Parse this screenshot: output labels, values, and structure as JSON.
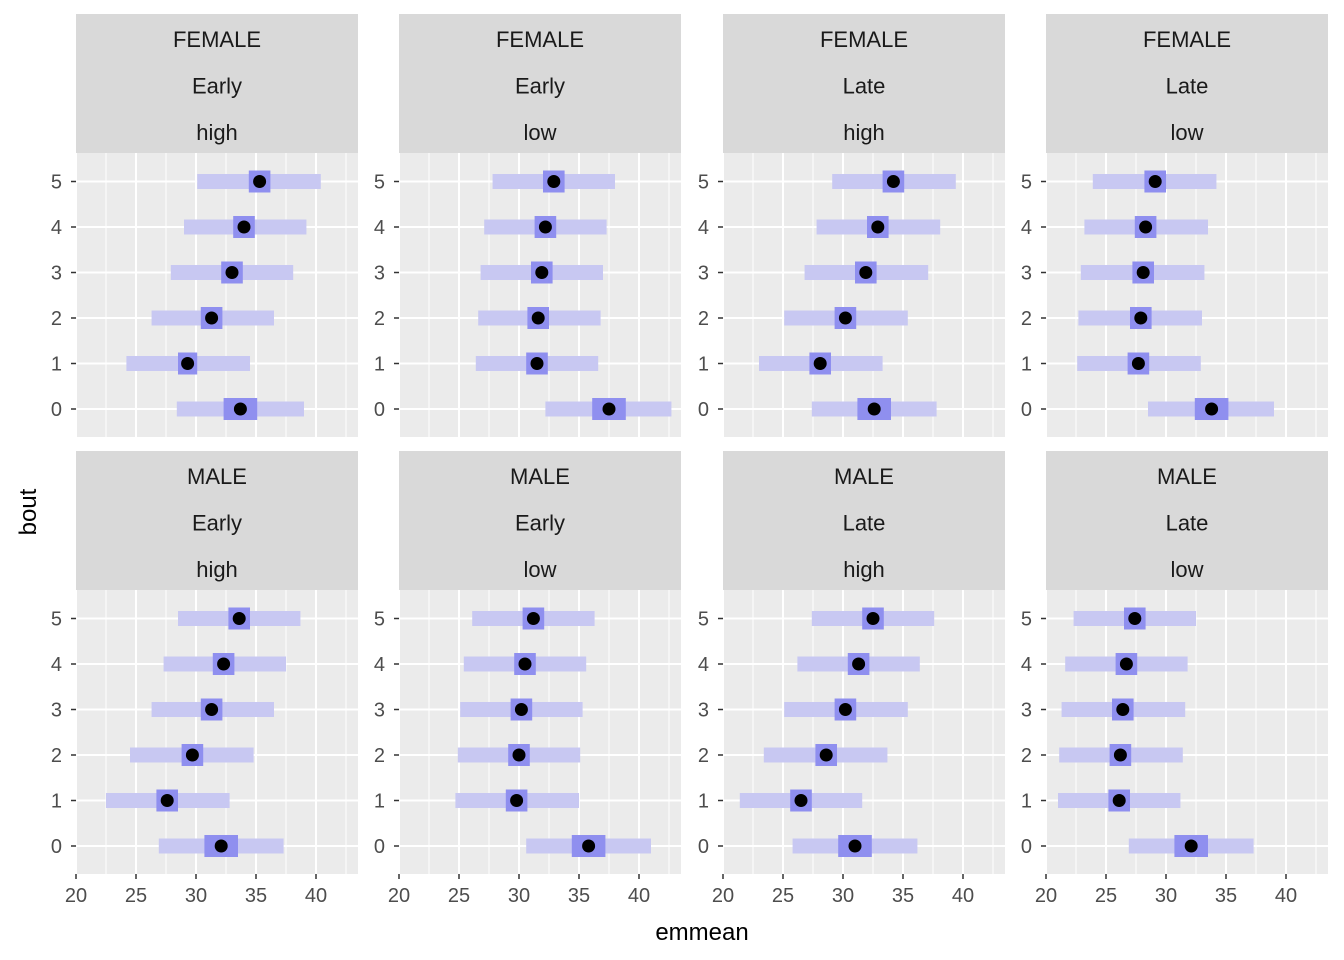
{
  "chart_data": {
    "type": "dot-interval",
    "xlabel": "emmean",
    "ylabel": "bout",
    "xlim": [
      20,
      43.5
    ],
    "x_ticks": [
      20,
      25,
      30,
      35,
      40
    ],
    "y_categories": [
      "0",
      "1",
      "2",
      "3",
      "4",
      "5"
    ],
    "colors": {
      "panel_bg": "#ebebeb",
      "strip_bg": "#d9d9d9",
      "grid_major": "#ffffff",
      "interval_wide": "#c8c8f2",
      "interval_narrow": "#8f8fef",
      "point": "#000000"
    },
    "panels": [
      {
        "strip": [
          "FEMALE",
          "Early",
          "high"
        ],
        "rows": [
          {
            "bout": 0,
            "emmean": 33.7,
            "lcl": 28.4,
            "ucl": 39.0,
            "lo50": 32.3,
            "hi50": 35.1
          },
          {
            "bout": 1,
            "emmean": 29.3,
            "lcl": 24.2,
            "ucl": 34.5,
            "lo50": 28.5,
            "hi50": 30.1
          },
          {
            "bout": 2,
            "emmean": 31.3,
            "lcl": 26.3,
            "ucl": 36.5,
            "lo50": 30.4,
            "hi50": 32.2
          },
          {
            "bout": 3,
            "emmean": 33.0,
            "lcl": 27.9,
            "ucl": 38.1,
            "lo50": 32.1,
            "hi50": 33.9
          },
          {
            "bout": 4,
            "emmean": 34.0,
            "lcl": 29.0,
            "ucl": 39.2,
            "lo50": 33.1,
            "hi50": 34.9
          },
          {
            "bout": 5,
            "emmean": 35.3,
            "lcl": 30.1,
            "ucl": 40.4,
            "lo50": 34.4,
            "hi50": 36.2
          }
        ]
      },
      {
        "strip": [
          "FEMALE",
          "Early",
          "low"
        ],
        "rows": [
          {
            "bout": 0,
            "emmean": 37.5,
            "lcl": 32.2,
            "ucl": 42.7,
            "lo50": 36.1,
            "hi50": 38.9
          },
          {
            "bout": 1,
            "emmean": 31.5,
            "lcl": 26.4,
            "ucl": 36.6,
            "lo50": 30.6,
            "hi50": 32.4
          },
          {
            "bout": 2,
            "emmean": 31.6,
            "lcl": 26.6,
            "ucl": 36.8,
            "lo50": 30.7,
            "hi50": 32.5
          },
          {
            "bout": 3,
            "emmean": 31.9,
            "lcl": 26.8,
            "ucl": 37.0,
            "lo50": 31.0,
            "hi50": 32.8
          },
          {
            "bout": 4,
            "emmean": 32.2,
            "lcl": 27.1,
            "ucl": 37.3,
            "lo50": 31.3,
            "hi50": 33.1
          },
          {
            "bout": 5,
            "emmean": 32.9,
            "lcl": 27.8,
            "ucl": 38.0,
            "lo50": 32.0,
            "hi50": 33.8
          }
        ]
      },
      {
        "strip": [
          "FEMALE",
          "Late",
          "high"
        ],
        "rows": [
          {
            "bout": 0,
            "emmean": 32.6,
            "lcl": 27.4,
            "ucl": 37.8,
            "lo50": 31.2,
            "hi50": 34.0
          },
          {
            "bout": 1,
            "emmean": 28.1,
            "lcl": 23.0,
            "ucl": 33.3,
            "lo50": 27.2,
            "hi50": 29.0
          },
          {
            "bout": 2,
            "emmean": 30.2,
            "lcl": 25.1,
            "ucl": 35.4,
            "lo50": 29.3,
            "hi50": 31.1
          },
          {
            "bout": 3,
            "emmean": 31.9,
            "lcl": 26.8,
            "ucl": 37.1,
            "lo50": 31.0,
            "hi50": 32.8
          },
          {
            "bout": 4,
            "emmean": 32.9,
            "lcl": 27.8,
            "ucl": 38.1,
            "lo50": 32.0,
            "hi50": 33.8
          },
          {
            "bout": 5,
            "emmean": 34.2,
            "lcl": 29.1,
            "ucl": 39.4,
            "lo50": 33.3,
            "hi50": 35.1
          }
        ]
      },
      {
        "strip": [
          "FEMALE",
          "Late",
          "low"
        ],
        "rows": [
          {
            "bout": 0,
            "emmean": 33.8,
            "lcl": 28.5,
            "ucl": 39.0,
            "lo50": 32.4,
            "hi50": 35.2
          },
          {
            "bout": 1,
            "emmean": 27.7,
            "lcl": 22.6,
            "ucl": 32.9,
            "lo50": 26.8,
            "hi50": 28.6
          },
          {
            "bout": 2,
            "emmean": 27.9,
            "lcl": 22.7,
            "ucl": 33.0,
            "lo50": 27.0,
            "hi50": 28.8
          },
          {
            "bout": 3,
            "emmean": 28.1,
            "lcl": 22.9,
            "ucl": 33.2,
            "lo50": 27.2,
            "hi50": 29.0
          },
          {
            "bout": 4,
            "emmean": 28.3,
            "lcl": 23.2,
            "ucl": 33.5,
            "lo50": 27.4,
            "hi50": 29.2
          },
          {
            "bout": 5,
            "emmean": 29.1,
            "lcl": 23.9,
            "ucl": 34.2,
            "lo50": 28.2,
            "hi50": 30.0
          }
        ]
      },
      {
        "strip": [
          "MALE",
          "Early",
          "high"
        ],
        "rows": [
          {
            "bout": 0,
            "emmean": 32.1,
            "lcl": 26.9,
            "ucl": 37.3,
            "lo50": 30.7,
            "hi50": 33.5
          },
          {
            "bout": 1,
            "emmean": 27.6,
            "lcl": 22.5,
            "ucl": 32.8,
            "lo50": 26.7,
            "hi50": 28.5
          },
          {
            "bout": 2,
            "emmean": 29.7,
            "lcl": 24.5,
            "ucl": 34.8,
            "lo50": 28.8,
            "hi50": 30.6
          },
          {
            "bout": 3,
            "emmean": 31.3,
            "lcl": 26.3,
            "ucl": 36.5,
            "lo50": 30.4,
            "hi50": 32.2
          },
          {
            "bout": 4,
            "emmean": 32.3,
            "lcl": 27.3,
            "ucl": 37.5,
            "lo50": 31.4,
            "hi50": 33.2
          },
          {
            "bout": 5,
            "emmean": 33.6,
            "lcl": 28.5,
            "ucl": 38.7,
            "lo50": 32.7,
            "hi50": 34.5
          }
        ]
      },
      {
        "strip": [
          "MALE",
          "Early",
          "low"
        ],
        "rows": [
          {
            "bout": 0,
            "emmean": 35.8,
            "lcl": 30.6,
            "ucl": 41.0,
            "lo50": 34.4,
            "hi50": 37.2
          },
          {
            "bout": 1,
            "emmean": 29.8,
            "lcl": 24.7,
            "ucl": 35.0,
            "lo50": 28.9,
            "hi50": 30.7
          },
          {
            "bout": 2,
            "emmean": 30.0,
            "lcl": 24.9,
            "ucl": 35.1,
            "lo50": 29.1,
            "hi50": 30.9
          },
          {
            "bout": 3,
            "emmean": 30.2,
            "lcl": 25.1,
            "ucl": 35.3,
            "lo50": 29.3,
            "hi50": 31.1
          },
          {
            "bout": 4,
            "emmean": 30.5,
            "lcl": 25.4,
            "ucl": 35.6,
            "lo50": 29.6,
            "hi50": 31.4
          },
          {
            "bout": 5,
            "emmean": 31.2,
            "lcl": 26.1,
            "ucl": 36.3,
            "lo50": 30.3,
            "hi50": 32.1
          }
        ]
      },
      {
        "strip": [
          "MALE",
          "Late",
          "high"
        ],
        "rows": [
          {
            "bout": 0,
            "emmean": 31.0,
            "lcl": 25.8,
            "ucl": 36.2,
            "lo50": 29.6,
            "hi50": 32.4
          },
          {
            "bout": 1,
            "emmean": 26.5,
            "lcl": 21.4,
            "ucl": 31.6,
            "lo50": 25.6,
            "hi50": 27.4
          },
          {
            "bout": 2,
            "emmean": 28.6,
            "lcl": 23.4,
            "ucl": 33.7,
            "lo50": 27.7,
            "hi50": 29.5
          },
          {
            "bout": 3,
            "emmean": 30.2,
            "lcl": 25.1,
            "ucl": 35.4,
            "lo50": 29.3,
            "hi50": 31.1
          },
          {
            "bout": 4,
            "emmean": 31.3,
            "lcl": 26.2,
            "ucl": 36.4,
            "lo50": 30.4,
            "hi50": 32.2
          },
          {
            "bout": 5,
            "emmean": 32.5,
            "lcl": 27.4,
            "ucl": 37.6,
            "lo50": 31.6,
            "hi50": 33.4
          }
        ]
      },
      {
        "strip": [
          "MALE",
          "Late",
          "low"
        ],
        "rows": [
          {
            "bout": 0,
            "emmean": 32.1,
            "lcl": 26.9,
            "ucl": 37.3,
            "lo50": 30.7,
            "hi50": 33.5
          },
          {
            "bout": 1,
            "emmean": 26.1,
            "lcl": 21.0,
            "ucl": 31.2,
            "lo50": 25.2,
            "hi50": 27.0
          },
          {
            "bout": 2,
            "emmean": 26.2,
            "lcl": 21.1,
            "ucl": 31.4,
            "lo50": 25.3,
            "hi50": 27.1
          },
          {
            "bout": 3,
            "emmean": 26.4,
            "lcl": 21.3,
            "ucl": 31.6,
            "lo50": 25.5,
            "hi50": 27.3
          },
          {
            "bout": 4,
            "emmean": 26.7,
            "lcl": 21.6,
            "ucl": 31.8,
            "lo50": 25.8,
            "hi50": 27.6
          },
          {
            "bout": 5,
            "emmean": 27.4,
            "lcl": 22.3,
            "ucl": 32.5,
            "lo50": 26.5,
            "hi50": 28.3
          }
        ]
      }
    ]
  }
}
